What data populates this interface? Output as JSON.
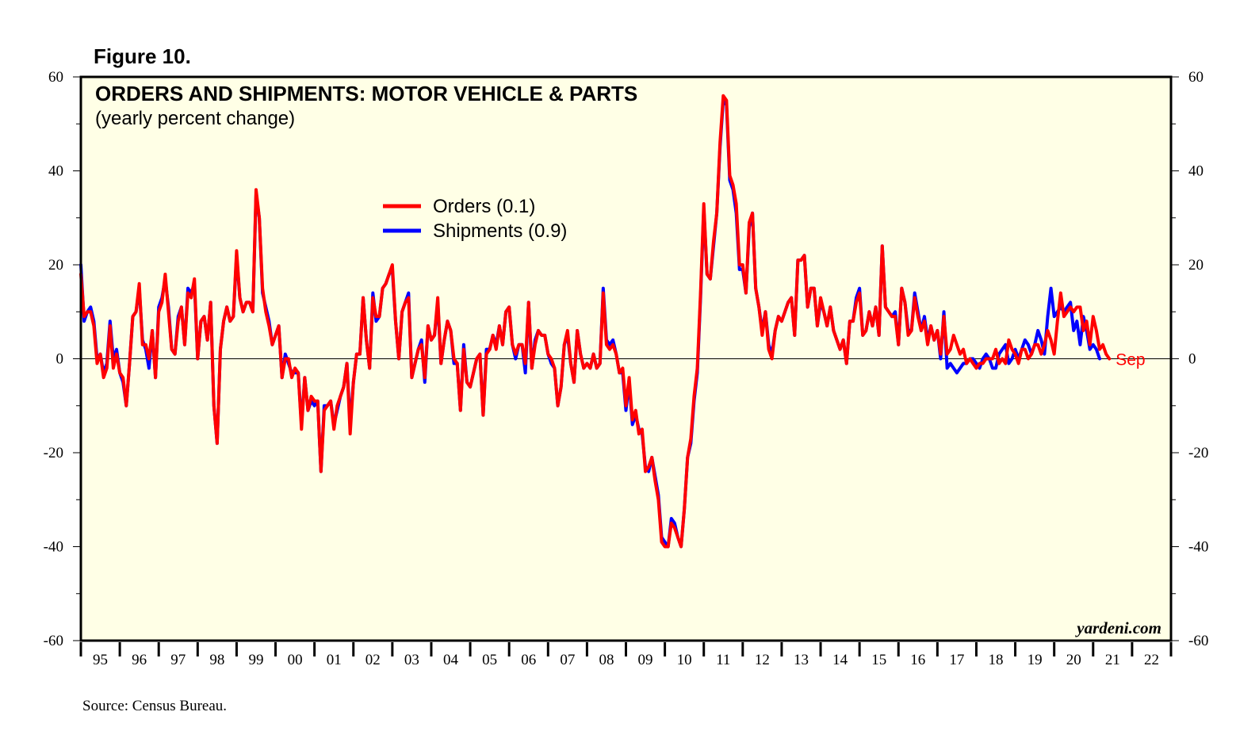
{
  "figure_label": "Figure 10.",
  "source": "Source: Census Bureau.",
  "watermark": "yardeni.com",
  "colors": {
    "background": "#ffffe6",
    "orders": "#ff0000",
    "shipments": "#0000ff",
    "axis": "#000000"
  },
  "chart_data": {
    "type": "line",
    "title": "ORDERS AND SHIPMENTS: MOTOR VEHICLE & PARTS",
    "subtitle": "(yearly percent change)",
    "ylim": [
      -60,
      60
    ],
    "yticks": [
      -60,
      -40,
      -20,
      0,
      20,
      40,
      60
    ],
    "x_range": [
      1995.0,
      2023.0
    ],
    "x_tick_labels": [
      "95",
      "96",
      "97",
      "98",
      "99",
      "00",
      "01",
      "02",
      "03",
      "04",
      "05",
      "06",
      "07",
      "08",
      "09",
      "10",
      "11",
      "12",
      "13",
      "14",
      "15",
      "16",
      "17",
      "18",
      "19",
      "20",
      "21",
      "22"
    ],
    "zero_line": true,
    "grid": false,
    "legend_placement": "top-center",
    "end_label": "Sep",
    "series": [
      {
        "name": "Orders (0.1)",
        "color": "#ff0000",
        "x_start": 1995.0,
        "step_months": 1,
        "values": [
          18,
          9,
          10,
          10,
          7,
          -1,
          1,
          -4,
          -2,
          7,
          -2,
          1,
          -3,
          -4,
          -10,
          -1,
          9,
          10,
          16,
          3,
          3,
          0,
          6,
          -4,
          10,
          12,
          18,
          10,
          2,
          1,
          8,
          11,
          3,
          14,
          13,
          17,
          0,
          8,
          9,
          4,
          12,
          -10,
          -18,
          2,
          8,
          11,
          8,
          9,
          23,
          13,
          10,
          12,
          12,
          10,
          36,
          30,
          15,
          10,
          7,
          3,
          5,
          7,
          -4,
          0,
          0,
          -4,
          -2,
          -3,
          -15,
          -4,
          -11,
          -8,
          -9,
          -9,
          -24,
          -11,
          -10,
          -9,
          -15,
          -10,
          -8,
          -6,
          -1,
          -16,
          -5,
          1,
          1,
          13,
          4,
          -2,
          13,
          9,
          9,
          15,
          16,
          18,
          20,
          8,
          0,
          10,
          12,
          13,
          -4,
          -1,
          2,
          3,
          -4,
          7,
          4,
          5,
          13,
          -1,
          4,
          8,
          6,
          0,
          -1,
          -11,
          2,
          -5,
          -6,
          -3,
          0,
          1,
          -12,
          1,
          2,
          5,
          2,
          7,
          3,
          10,
          11,
          3,
          1,
          3,
          3,
          -1,
          12,
          -2,
          3,
          6,
          5,
          5,
          1,
          0,
          -2,
          -10,
          -6,
          3,
          6,
          -1,
          -5,
          6,
          1,
          -2,
          -1,
          -2,
          1,
          -2,
          -1,
          14,
          3,
          2,
          3,
          1,
          -3,
          -2,
          -10,
          -4,
          -13,
          -11,
          -16,
          -15,
          -24,
          -23,
          -21,
          -26,
          -30,
          -39,
          -40,
          -40,
          -35,
          -36,
          -38,
          -40,
          -32,
          -21,
          -17,
          -8,
          -2,
          14,
          33,
          18,
          17,
          25,
          31,
          46,
          56,
          55,
          39,
          37,
          33,
          20,
          20,
          14,
          29,
          31,
          15,
          11,
          5,
          10,
          2,
          0,
          6,
          9,
          8,
          10,
          12,
          13,
          5,
          21,
          21,
          22,
          11,
          15,
          15,
          7,
          13,
          10,
          7,
          11,
          6,
          4,
          2,
          4,
          -1,
          8,
          8,
          12,
          14,
          5,
          6,
          10,
          7,
          11,
          5,
          24,
          11,
          10,
          9,
          9,
          3,
          15,
          12,
          5,
          6,
          13,
          9,
          6,
          8,
          3,
          7,
          4,
          6,
          1,
          9,
          1,
          2,
          5,
          3,
          1,
          2,
          -1,
          0,
          -1,
          -2,
          -1,
          -1,
          0,
          0,
          0,
          2,
          -1,
          0,
          -1,
          4,
          2,
          1,
          -1,
          2,
          2,
          0,
          1,
          3,
          3,
          1,
          3,
          6,
          4,
          1,
          8,
          14,
          9,
          10,
          11,
          10,
          11,
          11,
          6,
          8,
          3,
          9,
          6,
          2,
          3,
          1,
          0
        ]
      },
      {
        "name": "Shipments (0.9)",
        "color": "#0000ff",
        "x_start": 1995.0,
        "step_months": 1,
        "values": [
          20,
          8,
          10,
          11,
          8,
          0,
          1,
          -3,
          -1,
          8,
          0,
          2,
          -3,
          -5,
          -10,
          -1,
          9,
          10,
          15,
          4,
          2,
          -2,
          6,
          -4,
          11,
          13,
          17,
          11,
          2,
          1,
          9,
          11,
          3,
          15,
          14,
          16,
          0,
          8,
          9,
          4,
          12,
          -10,
          -18,
          2,
          8,
          11,
          8,
          9,
          22,
          13,
          10,
          12,
          12,
          10,
          35,
          30,
          14,
          11,
          8,
          3,
          5,
          7,
          -4,
          1,
          -1,
          -3,
          -3,
          -3,
          -14,
          -4,
          -11,
          -9,
          -10,
          -9,
          -24,
          -10,
          -10,
          -9,
          -14,
          -11,
          -8,
          -6,
          -1,
          -14,
          -5,
          1,
          1,
          13,
          4,
          -2,
          14,
          8,
          9,
          15,
          16,
          18,
          19,
          8,
          0,
          10,
          12,
          14,
          -4,
          -1,
          2,
          4,
          -5,
          7,
          4,
          5,
          12,
          -1,
          4,
          8,
          6,
          -1,
          -1,
          -11,
          3,
          -5,
          -6,
          -3,
          0,
          1,
          -12,
          2,
          2,
          5,
          3,
          7,
          3,
          10,
          11,
          3,
          0,
          3,
          3,
          -3,
          12,
          -2,
          4,
          6,
          5,
          5,
          1,
          -1,
          -2,
          -10,
          -6,
          3,
          5,
          -1,
          -5,
          6,
          1,
          -2,
          -1,
          -2,
          1,
          -2,
          -1,
          15,
          4,
          3,
          4,
          1,
          -3,
          -3,
          -11,
          -5,
          -14,
          -12,
          -15,
          -16,
          -23,
          -24,
          -21,
          -25,
          -29,
          -38,
          -39,
          -40,
          -34,
          -35,
          -38,
          -40,
          -32,
          -21,
          -18,
          -9,
          -3,
          13,
          32,
          18,
          17,
          24,
          31,
          45,
          55,
          54,
          38,
          36,
          31,
          19,
          19,
          14,
          28,
          31,
          15,
          11,
          6,
          10,
          3,
          1,
          6,
          9,
          8,
          10,
          12,
          13,
          5,
          21,
          21,
          22,
          11,
          15,
          15,
          7,
          12,
          10,
          7,
          11,
          6,
          4,
          2,
          4,
          -1,
          8,
          8,
          13,
          15,
          5,
          6,
          10,
          7,
          11,
          5,
          24,
          11,
          10,
          9,
          10,
          3,
          15,
          12,
          6,
          6,
          14,
          10,
          6,
          9,
          4,
          7,
          4,
          6,
          0,
          10,
          -2,
          -1,
          -2,
          -3,
          -2,
          -1,
          -1,
          0,
          0,
          -1,
          -2,
          0,
          1,
          0,
          -2,
          -2,
          1,
          2,
          3,
          -1,
          0,
          2,
          0,
          2,
          4,
          3,
          1,
          3,
          6,
          4,
          1,
          9,
          15,
          9,
          10,
          11,
          10,
          11,
          12,
          6,
          8,
          3,
          9,
          6,
          2,
          3,
          2,
          0
        ]
      }
    ]
  }
}
